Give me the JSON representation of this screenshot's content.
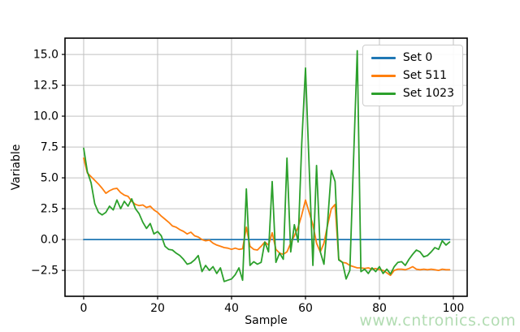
{
  "figure": {
    "background": "#ffffff",
    "watermark": {
      "text": "www.cntronics.com",
      "color": "#b2dcb2"
    }
  },
  "colors": {
    "grid": "#c0c0c0",
    "spine": "#000000",
    "tick_label": "#000000",
    "legend_border": "#cccccc",
    "legend_bg": "#ffffff"
  },
  "chart_data": {
    "type": "line",
    "title": "",
    "xlabel": "Sample",
    "ylabel": "Variable",
    "xlim": [
      -5.05,
      103.74
    ],
    "ylim": [
      -4.6,
      16.32
    ],
    "grid": true,
    "legend_position": "upper right",
    "x_ticks": [
      0,
      20,
      40,
      60,
      80,
      100
    ],
    "x_tick_labels": [
      "0",
      "20",
      "40",
      "60",
      "80",
      "100"
    ],
    "y_ticks": [
      -2.5,
      0,
      2.5,
      5,
      7.5,
      10,
      12.5,
      15
    ],
    "y_tick_labels": [
      "−2.5",
      "0.0",
      "2.5",
      "5.0",
      "7.5",
      "10.0",
      "12.5",
      "15.0"
    ],
    "x_start": 0,
    "x_step": 1,
    "n_points": 100,
    "series": [
      {
        "name": "Set 0",
        "color": "#1f77b4",
        "constant": 0,
        "length": 100
      },
      {
        "name": "Set 511",
        "color": "#ff7f0e",
        "values": [
          6.6,
          5.4,
          5.1,
          4.8,
          4.5,
          4.15,
          3.75,
          3.95,
          4.1,
          4.15,
          3.8,
          3.6,
          3.5,
          3.1,
          2.85,
          2.75,
          2.8,
          2.6,
          2.7,
          2.4,
          2.2,
          1.9,
          1.65,
          1.4,
          1.1,
          1.0,
          0.8,
          0.66,
          0.45,
          0.6,
          0.3,
          0.2,
          0.0,
          -0.1,
          -0.05,
          -0.3,
          -0.45,
          -0.55,
          -0.65,
          -0.7,
          -0.8,
          -0.7,
          -0.8,
          -0.75,
          1.0,
          -0.55,
          -0.8,
          -0.85,
          -0.55,
          -0.2,
          -0.45,
          0.55,
          -0.8,
          -1.1,
          -1.2,
          -1.0,
          -0.3,
          0.3,
          1.0,
          2.0,
          3.2,
          2.2,
          1.2,
          -0.3,
          -1.0,
          -0.3,
          1.2,
          2.5,
          2.85,
          -1.6,
          -1.85,
          -1.9,
          -2.1,
          -2.2,
          -2.3,
          -2.3,
          -2.35,
          -2.3,
          -2.4,
          -2.35,
          -2.45,
          -2.5,
          -2.7,
          -2.9,
          -2.5,
          -2.4,
          -2.4,
          -2.45,
          -2.35,
          -2.2,
          -2.4,
          -2.45,
          -2.4,
          -2.45,
          -2.4,
          -2.45,
          -2.5,
          -2.4,
          -2.45,
          -2.45
        ]
      },
      {
        "name": "Set 1023",
        "color": "#2ca02c",
        "values": [
          7.4,
          5.5,
          4.6,
          2.9,
          2.2,
          2.0,
          2.2,
          2.7,
          2.4,
          3.2,
          2.5,
          3.1,
          2.7,
          3.3,
          2.5,
          2.1,
          1.4,
          0.9,
          1.3,
          0.45,
          0.65,
          0.3,
          -0.55,
          -0.8,
          -0.85,
          -1.1,
          -1.3,
          -1.6,
          -2.0,
          -1.9,
          -1.65,
          -1.3,
          -2.6,
          -2.1,
          -2.5,
          -2.2,
          -2.75,
          -2.3,
          -3.4,
          -3.3,
          -3.2,
          -2.85,
          -2.3,
          -3.3,
          4.1,
          -2.1,
          -1.8,
          -2.0,
          -1.85,
          -0.2,
          -1.0,
          4.7,
          -1.85,
          -1.1,
          -1.6,
          6.6,
          -1.0,
          1.2,
          -0.2,
          7.8,
          13.9,
          5.9,
          -2.1,
          6.0,
          -1.0,
          -2.0,
          1.5,
          5.6,
          4.7,
          -1.65,
          -1.85,
          -3.2,
          -2.5,
          6.4,
          15.3,
          -2.6,
          -2.4,
          -2.75,
          -2.3,
          -2.6,
          -2.2,
          -2.75,
          -2.4,
          -2.8,
          -2.2,
          -1.85,
          -1.8,
          -2.1,
          -1.6,
          -1.2,
          -0.85,
          -1.0,
          -1.4,
          -1.3,
          -1.0,
          -0.65,
          -0.8,
          -0.1,
          -0.45,
          -0.2
        ]
      }
    ]
  }
}
